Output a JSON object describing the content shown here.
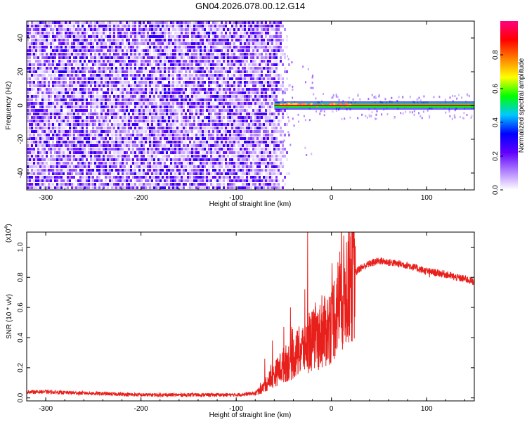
{
  "title": "GN04.2026.078.00.12.G14",
  "chart_data": [
    {
      "type": "heatmap",
      "panel": "top",
      "xlabel": "Height of straight line (km)",
      "ylabel": "Frequency (Hz)",
      "xlim": [
        -320,
        150
      ],
      "ylim": [
        -50,
        50
      ],
      "x_ticks": [
        -300,
        -200,
        -100,
        0,
        100
      ],
      "x_tick_labels": [
        "-300",
        "-200",
        "-100",
        "0",
        "100"
      ],
      "y_ticks": [
        -40,
        -20,
        0,
        20,
        40
      ],
      "y_tick_labels": [
        "-40",
        "-20",
        "0",
        "20",
        "40"
      ],
      "noise_region_x": [
        -320,
        -52
      ],
      "signal_line": {
        "x_start": -60,
        "x_end": 150,
        "frequency": 0,
        "amplitude": 0.9
      },
      "colorbar": {
        "label": "Normalized spectral amplitude",
        "range": [
          0,
          1
        ],
        "ticks": [
          0.0,
          0.2,
          0.4,
          0.6,
          0.8
        ],
        "tick_labels": [
          "0.0",
          "0.2",
          "0.4",
          "0.6",
          "0.8"
        ],
        "colors": [
          "#ffffff",
          "#b080ff",
          "#6000ff",
          "#0000ff",
          "#00c8ff",
          "#00ff00",
          "#ffff00",
          "#ff8000",
          "#ff0000",
          "#ff0080"
        ]
      }
    },
    {
      "type": "line",
      "panel": "bottom",
      "xlabel": "Height of straight line (km)",
      "ylabel": "SNR (10 * v/v)",
      "scale_label": "(x10",
      "scale_exp": "4",
      "scale_close": ")",
      "xlim": [
        -320,
        150
      ],
      "ylim": [
        -0.02,
        1.1
      ],
      "x_ticks": [
        -300,
        -200,
        -100,
        0,
        100
      ],
      "x_tick_labels": [
        "-300",
        "-200",
        "-100",
        "0",
        "100"
      ],
      "y_ticks": [
        0.0,
        0.2,
        0.4,
        0.6,
        0.8,
        1.0
      ],
      "y_tick_labels": [
        "0.0",
        "0.2",
        "0.4",
        "0.6",
        "0.8",
        "1.0"
      ],
      "line_color": "#e8201c",
      "series": [
        {
          "name": "SNR",
          "x": [
            -320,
            -300,
            -280,
            -250,
            -200,
            -150,
            -100,
            -80,
            -75,
            -70,
            -65,
            -60,
            -55,
            -50,
            -45,
            -40,
            -35,
            -30,
            -25,
            -20,
            -15,
            -10,
            -5,
            0,
            5,
            10,
            15,
            20,
            25,
            30,
            40,
            50,
            60,
            70,
            80,
            90,
            100,
            110,
            120,
            130,
            140,
            150
          ],
          "y": [
            0.04,
            0.04,
            0.035,
            0.03,
            0.02,
            0.02,
            0.02,
            0.03,
            0.05,
            0.08,
            0.12,
            0.15,
            0.19,
            0.22,
            0.24,
            0.27,
            0.3,
            0.33,
            0.36,
            0.38,
            0.4,
            0.42,
            0.45,
            0.5,
            0.58,
            0.66,
            0.73,
            0.79,
            0.83,
            0.86,
            0.89,
            0.91,
            0.9,
            0.89,
            0.88,
            0.86,
            0.84,
            0.83,
            0.82,
            0.8,
            0.79,
            0.77
          ]
        }
      ],
      "spikes": [
        {
          "x": -25,
          "y": 1.1
        },
        {
          "x": -28,
          "y": 0.72
        },
        {
          "x": -43,
          "y": 0.6
        },
        {
          "x": -50,
          "y": 0.47
        },
        {
          "x": -62,
          "y": 0.38
        },
        {
          "x": -70,
          "y": 0.26
        },
        {
          "x": -10,
          "y": 0.68
        },
        {
          "x": 103,
          "y": 0.8
        }
      ]
    }
  ]
}
